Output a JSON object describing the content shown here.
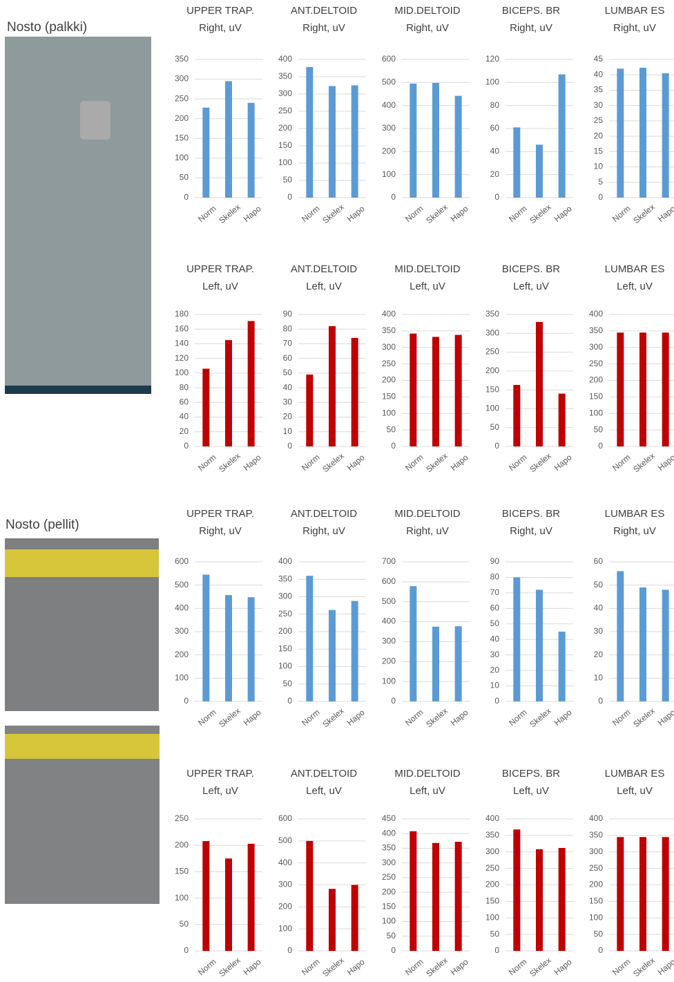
{
  "sections": [
    "Nosto (palkki)",
    "Nosto (pellit)"
  ],
  "chart_data": [
    {
      "type": "bar",
      "title": "UPPER TRAP.",
      "subtitle": "Right, uV",
      "categories": [
        "Norm",
        "Skelex",
        "Hapo"
      ],
      "values": [
        228,
        295,
        240
      ],
      "color": "#5b9bd5",
      "ylim": [
        0,
        350
      ],
      "yticks": [
        0,
        50,
        100,
        150,
        200,
        250,
        300,
        350
      ],
      "grid": true
    },
    {
      "type": "bar",
      "title": "ANT.DELTOID",
      "subtitle": "Right, uV",
      "categories": [
        "Norm",
        "Skelex",
        "Hapo"
      ],
      "values": [
        378,
        323,
        325
      ],
      "color": "#5b9bd5",
      "ylim": [
        0,
        400
      ],
      "yticks": [
        0,
        50,
        100,
        150,
        200,
        250,
        300,
        350,
        400
      ],
      "grid": true
    },
    {
      "type": "bar",
      "title": "MID.DELTOID",
      "subtitle": "Right, uV",
      "categories": [
        "Norm",
        "Skelex",
        "Hapo"
      ],
      "values": [
        495,
        498,
        442
      ],
      "color": "#5b9bd5",
      "ylim": [
        0,
        600
      ],
      "yticks": [
        0,
        100,
        200,
        300,
        400,
        500,
        600
      ],
      "grid": true
    },
    {
      "type": "bar",
      "title": "BICEPS. BR",
      "subtitle": "Right, uV",
      "categories": [
        "Norm",
        "Skelex",
        "Hapo"
      ],
      "values": [
        61,
        46,
        107
      ],
      "color": "#5b9bd5",
      "ylim": [
        0,
        120
      ],
      "yticks": [
        0,
        20,
        40,
        60,
        80,
        100,
        120
      ],
      "grid": true
    },
    {
      "type": "bar",
      "title": "LUMBAR ES",
      "subtitle": "Right, uV",
      "categories": [
        "Norm",
        "Skelex",
        "Hapo"
      ],
      "values": [
        42,
        42.3,
        40.5
      ],
      "color": "#5b9bd5",
      "ylim": [
        0,
        45
      ],
      "yticks": [
        0,
        5,
        10,
        15,
        20,
        25,
        30,
        35,
        40,
        45
      ],
      "grid": true
    },
    {
      "type": "bar",
      "title": "UPPER TRAP.",
      "subtitle": "Left, uV",
      "categories": [
        "Norm",
        "Skelex",
        "Hapo"
      ],
      "values": [
        106,
        145,
        171
      ],
      "color": "#c00000",
      "ylim": [
        0,
        180
      ],
      "yticks": [
        0,
        20,
        40,
        60,
        80,
        100,
        120,
        140,
        160,
        180
      ],
      "grid": true
    },
    {
      "type": "bar",
      "title": "ANT.DELTOID",
      "subtitle": "Left, uV",
      "categories": [
        "Norm",
        "Skelex",
        "Hapo"
      ],
      "values": [
        49,
        82,
        74
      ],
      "color": "#c00000",
      "ylim": [
        0,
        90
      ],
      "yticks": [
        0,
        10,
        20,
        30,
        40,
        50,
        60,
        70,
        80,
        90
      ],
      "grid": true
    },
    {
      "type": "bar",
      "title": "MID.DELTOID",
      "subtitle": "Left, uV",
      "categories": [
        "Norm",
        "Skelex",
        "Hapo"
      ],
      "values": [
        342,
        332,
        338
      ],
      "color": "#c00000",
      "ylim": [
        0,
        400
      ],
      "yticks": [
        0,
        50,
        100,
        150,
        200,
        250,
        300,
        350,
        400
      ],
      "grid": true
    },
    {
      "type": "bar",
      "title": "BICEPS. BR",
      "subtitle": "Left, uV",
      "categories": [
        "Norm",
        "Skelex",
        "Hapo"
      ],
      "values": [
        163,
        330,
        140
      ],
      "color": "#c00000",
      "ylim": [
        0,
        350
      ],
      "yticks": [
        0,
        50,
        100,
        150,
        200,
        250,
        300,
        350
      ],
      "grid": true
    },
    {
      "type": "bar",
      "title": "LUMBAR ES",
      "subtitle": "Left, uV",
      "categories": [
        "Norm",
        "Skelex",
        "Hapo"
      ],
      "values": [
        345,
        345,
        345
      ],
      "color": "#c00000",
      "ylim": [
        0,
        400
      ],
      "yticks": [
        0,
        50,
        100,
        150,
        200,
        250,
        300,
        350,
        400
      ],
      "grid": true
    },
    {
      "type": "bar",
      "title": "UPPER TRAP.",
      "subtitle": "Right, uV",
      "categories": [
        "Norm",
        "Skelex",
        "Hapo"
      ],
      "values": [
        545,
        457,
        448
      ],
      "color": "#5b9bd5",
      "ylim": [
        0,
        600
      ],
      "yticks": [
        0,
        100,
        200,
        300,
        400,
        500,
        600
      ],
      "grid": true
    },
    {
      "type": "bar",
      "title": "ANT.DELTOID",
      "subtitle": "Right, uV",
      "categories": [
        "Norm",
        "Skelex",
        "Hapo"
      ],
      "values": [
        360,
        262,
        288
      ],
      "color": "#5b9bd5",
      "ylim": [
        0,
        400
      ],
      "yticks": [
        0,
        50,
        100,
        150,
        200,
        250,
        300,
        350,
        400
      ],
      "grid": true
    },
    {
      "type": "bar",
      "title": "MID.DELTOID",
      "subtitle": "Right, uV",
      "categories": [
        "Norm",
        "Skelex",
        "Hapo"
      ],
      "values": [
        578,
        375,
        377
      ],
      "color": "#5b9bd5",
      "ylim": [
        0,
        700
      ],
      "yticks": [
        0,
        100,
        200,
        300,
        400,
        500,
        600,
        700
      ],
      "grid": true
    },
    {
      "type": "bar",
      "title": "BICEPS. BR",
      "subtitle": "Right, uV",
      "categories": [
        "Norm",
        "Skelex",
        "Hapo"
      ],
      "values": [
        80,
        72,
        45
      ],
      "color": "#5b9bd5",
      "ylim": [
        0,
        90
      ],
      "yticks": [
        0,
        10,
        20,
        30,
        40,
        50,
        60,
        70,
        80,
        90
      ],
      "grid": true
    },
    {
      "type": "bar",
      "title": "LUMBAR ES",
      "subtitle": "Right, uV",
      "categories": [
        "Norm",
        "Skelex",
        "Hapo"
      ],
      "values": [
        56,
        49,
        48
      ],
      "color": "#5b9bd5",
      "ylim": [
        0,
        60
      ],
      "yticks": [
        0,
        10,
        20,
        30,
        40,
        50,
        60
      ],
      "grid": true
    },
    {
      "type": "bar",
      "title": "UPPER TRAP.",
      "subtitle": "Left, uV",
      "categories": [
        "Norm",
        "Skelex",
        "Hapo"
      ],
      "values": [
        208,
        175,
        203
      ],
      "color": "#c00000",
      "ylim": [
        0,
        250
      ],
      "yticks": [
        0,
        50,
        100,
        150,
        200,
        250
      ],
      "grid": true
    },
    {
      "type": "bar",
      "title": "ANT.DELTOID",
      "subtitle": "Left, uV",
      "categories": [
        "Norm",
        "Skelex",
        "Hapo"
      ],
      "values": [
        500,
        282,
        300
      ],
      "color": "#c00000",
      "ylim": [
        0,
        600
      ],
      "yticks": [
        0,
        100,
        200,
        300,
        400,
        500,
        600
      ],
      "grid": true
    },
    {
      "type": "bar",
      "title": "MID.DELTOID",
      "subtitle": "Left, uV",
      "categories": [
        "Norm",
        "Skelex",
        "Hapo"
      ],
      "values": [
        408,
        368,
        372
      ],
      "color": "#c00000",
      "ylim": [
        0,
        450
      ],
      "yticks": [
        0,
        50,
        100,
        150,
        200,
        250,
        300,
        350,
        400,
        450
      ],
      "grid": true
    },
    {
      "type": "bar",
      "title": "BICEPS. BR",
      "subtitle": "Left, uV",
      "categories": [
        "Norm",
        "Skelex",
        "Hapo"
      ],
      "values": [
        368,
        308,
        312
      ],
      "color": "#c00000",
      "ylim": [
        0,
        400
      ],
      "yticks": [
        0,
        50,
        100,
        150,
        200,
        250,
        300,
        350,
        400
      ],
      "grid": true
    },
    {
      "type": "bar",
      "title": "LUMBAR ES",
      "subtitle": "Left, uV",
      "categories": [
        "Norm",
        "Skelex",
        "Hapo"
      ],
      "values": [
        345,
        345,
        345
      ],
      "color": "#c00000",
      "ylim": [
        0,
        400
      ],
      "yticks": [
        0,
        50,
        100,
        150,
        200,
        250,
        300,
        350,
        400
      ],
      "grid": true
    }
  ]
}
